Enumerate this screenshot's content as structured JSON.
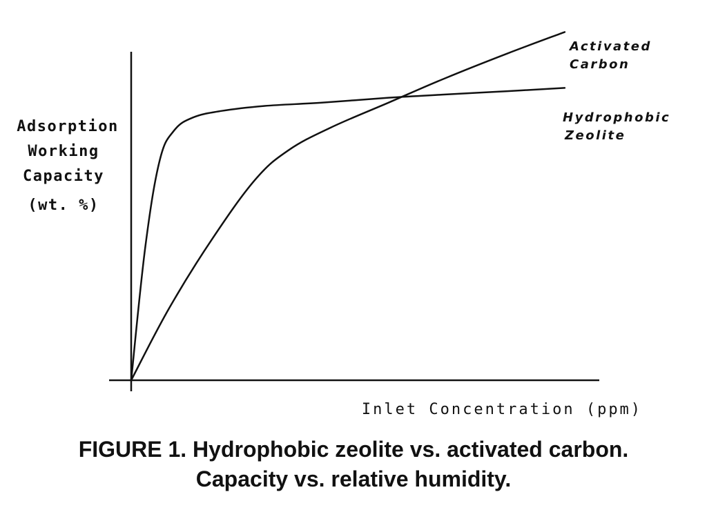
{
  "caption": {
    "line1": "FIGURE 1. Hydrophobic zeolite vs. activated carbon.",
    "line2": "Capacity vs. relative humidity."
  },
  "chart_data": {
    "type": "line",
    "title": "FIGURE 1. Hydrophobic zeolite vs. activated carbon. Capacity vs. relative humidity.",
    "xlabel": "Inlet Concentration (ppm)",
    "ylabel_lines": [
      "Adsorption",
      "Working",
      "Capacity",
      "(wt. %)"
    ],
    "ylabel": "Adsorption Working Capacity (wt. %)",
    "xlim": [
      0,
      10
    ],
    "ylim": [
      0,
      10
    ],
    "grid": false,
    "legend": "inline labels at right end of each curve",
    "series": [
      {
        "name": "Hydrophobic Zeolite",
        "label_lines": [
          "Hydrophobic",
          "Zeolite"
        ],
        "x": [
          0,
          0.3,
          0.6,
          0.9,
          1.3,
          1.9,
          2.8,
          4.0,
          5.4,
          6.6,
          7.9,
          9.1
        ],
        "y": [
          0,
          4.1,
          6.7,
          7.6,
          8.0,
          8.2,
          8.35,
          8.45,
          8.6,
          8.7,
          8.8,
          8.9
        ]
      },
      {
        "name": "Activated Carbon",
        "label_lines": [
          "Activated",
          "Carbon"
        ],
        "x": [
          0,
          0.8,
          1.7,
          2.6,
          3.3,
          4.2,
          5.4,
          6.6,
          7.9,
          9.1
        ],
        "y": [
          0,
          2.2,
          4.3,
          6.1,
          7.0,
          7.7,
          8.45,
          9.2,
          9.95,
          10.6
        ]
      }
    ]
  }
}
